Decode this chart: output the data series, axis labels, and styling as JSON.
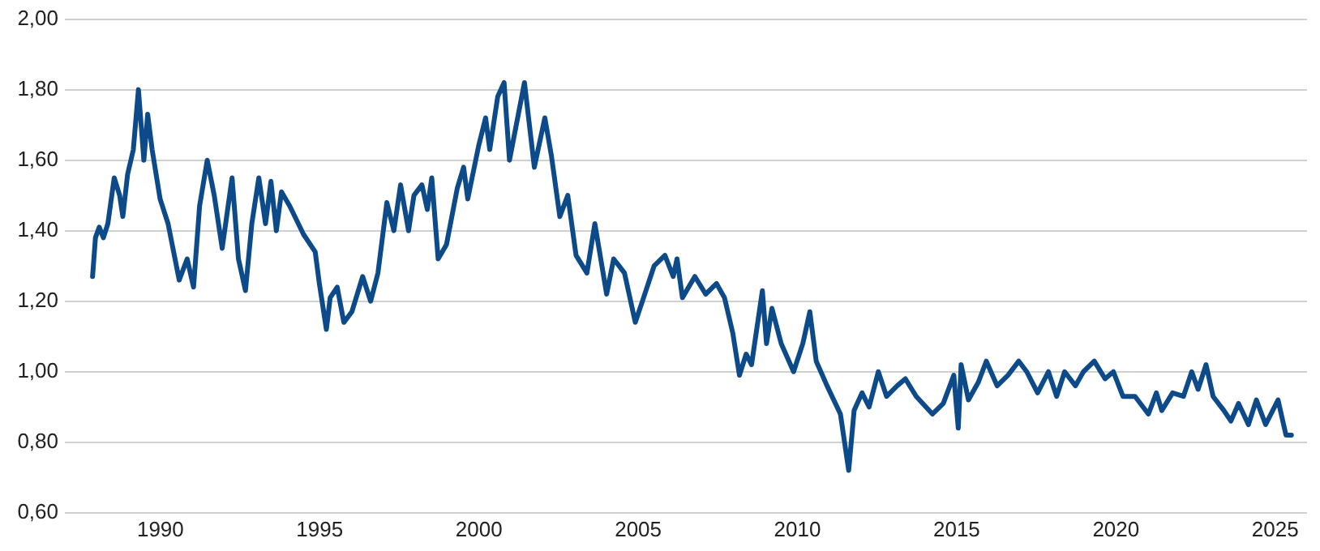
{
  "chart_data": {
    "type": "line",
    "xlim": [
      1987,
      2026
    ],
    "xticks": [
      1990,
      1995,
      2000,
      2005,
      2010,
      2015,
      2020,
      2025
    ],
    "ylim": [
      0.6,
      2.0
    ],
    "yticks": [
      {
        "value": 0.6,
        "label": "0,60"
      },
      {
        "value": 0.8,
        "label": "0,80"
      },
      {
        "value": 1.0,
        "label": "1,00"
      },
      {
        "value": 1.2,
        "label": "1,20"
      },
      {
        "value": 1.4,
        "label": "1,40"
      },
      {
        "value": 1.6,
        "label": "1,60"
      },
      {
        "value": 1.8,
        "label": "1,80"
      },
      {
        "value": 2.0,
        "label": "2,00"
      }
    ],
    "grid": "y",
    "legend": false,
    "marker": "none",
    "line_style": "solid",
    "series": [
      {
        "color": "#0d4a8a",
        "x": [
          1987.87,
          1987.96,
          1988.08,
          1988.21,
          1988.35,
          1988.55,
          1988.72,
          1988.82,
          1988.97,
          1989.15,
          1989.31,
          1989.48,
          1989.6,
          1989.74,
          1989.99,
          1990.24,
          1990.59,
          1990.84,
          1991.04,
          1991.23,
          1991.47,
          1991.69,
          1991.94,
          1992.25,
          1992.45,
          1992.67,
          1992.87,
          1993.09,
          1993.3,
          1993.47,
          1993.64,
          1993.8,
          1994.06,
          1994.49,
          1994.86,
          1994.99,
          1995.21,
          1995.33,
          1995.55,
          1995.76,
          1996.01,
          1996.35,
          1996.6,
          1996.83,
          1997.11,
          1997.33,
          1997.54,
          1997.79,
          1997.96,
          1998.21,
          1998.38,
          1998.52,
          1998.72,
          1998.98,
          1999.32,
          1999.52,
          1999.65,
          1999.99,
          2000.21,
          2000.34,
          2000.59,
          2000.79,
          2000.96,
          2001.43,
          2001.74,
          2002.07,
          2002.28,
          2002.54,
          2002.79,
          2003.05,
          2003.39,
          2003.64,
          2004.01,
          2004.23,
          2004.57,
          2004.91,
          2005.17,
          2005.5,
          2005.84,
          2006.1,
          2006.22,
          2006.39,
          2006.78,
          2007.12,
          2007.46,
          2007.71,
          2007.97,
          2008.18,
          2008.39,
          2008.56,
          2008.9,
          2009.03,
          2009.2,
          2009.49,
          2009.88,
          2010.17,
          2010.39,
          2010.59,
          2010.93,
          2011.35,
          2011.61,
          2011.78,
          2012.03,
          2012.25,
          2012.54,
          2012.8,
          2013.13,
          2013.39,
          2013.73,
          2014.24,
          2014.58,
          2014.91,
          2015.05,
          2015.14,
          2015.37,
          2015.68,
          2015.93,
          2016.27,
          2016.61,
          2016.95,
          2017.2,
          2017.54,
          2017.88,
          2018.14,
          2018.39,
          2018.73,
          2018.98,
          2019.32,
          2019.66,
          2019.92,
          2020.22,
          2020.6,
          2021.02,
          2021.27,
          2021.44,
          2021.78,
          2022.12,
          2022.38,
          2022.58,
          2022.83,
          2023.05,
          2023.39,
          2023.61,
          2023.85,
          2024.16,
          2024.41,
          2024.7,
          2025.09,
          2025.34,
          2025.51
        ],
        "values": [
          1.27,
          1.38,
          1.41,
          1.38,
          1.42,
          1.55,
          1.5,
          1.44,
          1.56,
          1.63,
          1.8,
          1.6,
          1.73,
          1.63,
          1.49,
          1.42,
          1.26,
          1.32,
          1.24,
          1.47,
          1.6,
          1.5,
          1.35,
          1.55,
          1.32,
          1.23,
          1.42,
          1.55,
          1.42,
          1.54,
          1.4,
          1.51,
          1.47,
          1.39,
          1.34,
          1.25,
          1.12,
          1.21,
          1.24,
          1.14,
          1.17,
          1.27,
          1.2,
          1.28,
          1.48,
          1.4,
          1.53,
          1.4,
          1.5,
          1.53,
          1.46,
          1.55,
          1.32,
          1.36,
          1.52,
          1.58,
          1.49,
          1.64,
          1.72,
          1.63,
          1.78,
          1.82,
          1.6,
          1.82,
          1.58,
          1.72,
          1.61,
          1.44,
          1.5,
          1.33,
          1.28,
          1.42,
          1.22,
          1.32,
          1.28,
          1.14,
          1.21,
          1.3,
          1.33,
          1.27,
          1.32,
          1.21,
          1.27,
          1.22,
          1.25,
          1.21,
          1.11,
          0.99,
          1.05,
          1.02,
          1.23,
          1.08,
          1.18,
          1.08,
          1.0,
          1.08,
          1.17,
          1.03,
          0.96,
          0.88,
          0.72,
          0.89,
          0.94,
          0.9,
          1.0,
          0.93,
          0.96,
          0.98,
          0.93,
          0.88,
          0.91,
          0.99,
          0.84,
          1.02,
          0.92,
          0.97,
          1.03,
          0.96,
          0.99,
          1.03,
          1.0,
          0.94,
          1.0,
          0.93,
          1.0,
          0.96,
          1.0,
          1.03,
          0.98,
          1.0,
          0.93,
          0.93,
          0.88,
          0.94,
          0.89,
          0.94,
          0.93,
          1.0,
          0.95,
          1.02,
          0.93,
          0.89,
          0.86,
          0.91,
          0.85,
          0.92,
          0.85,
          0.92,
          0.82,
          0.82
        ]
      }
    ]
  }
}
